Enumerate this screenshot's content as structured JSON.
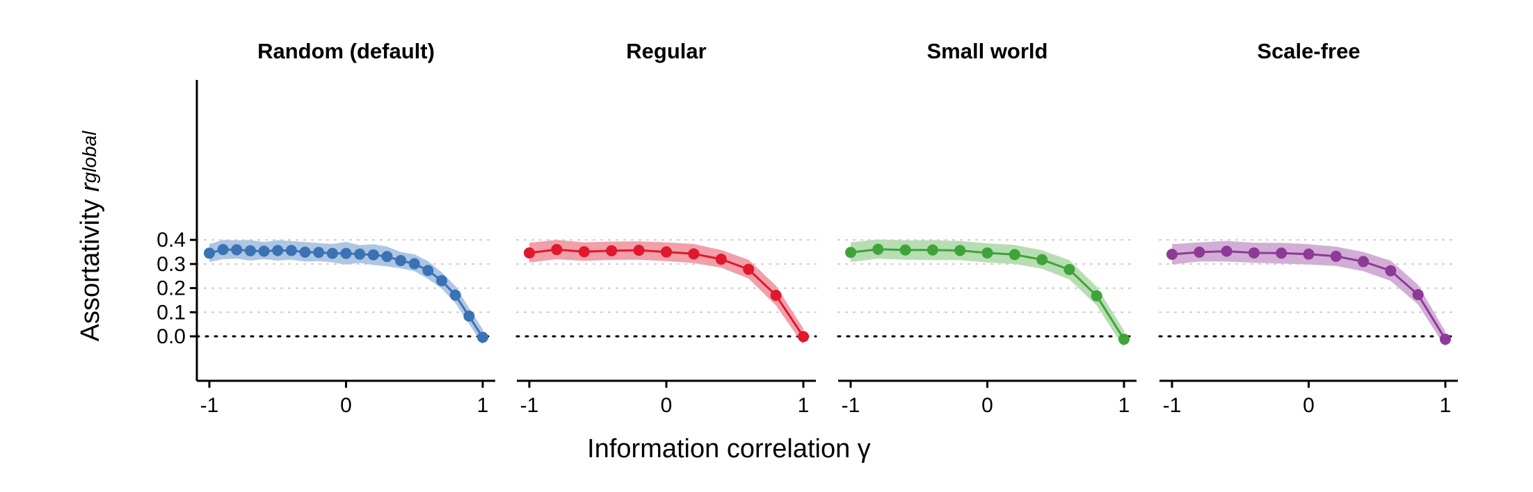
{
  "figure": {
    "ylabel_main": "Assortativity ",
    "ylabel_italic": "r",
    "ylabel_sub": "global",
    "xlabel": "Information correlation γ"
  },
  "chart_data": [
    {
      "type": "line",
      "title": "Random (default)",
      "color": "#3b72b4",
      "band_color": "#a9c3e1",
      "xlabel": "Information correlation γ",
      "ylabel": "Assortativity r_global",
      "xlim": [
        -1,
        1
      ],
      "ylim": [
        -0.07,
        0.42
      ],
      "xticks": [
        -1,
        0,
        1
      ],
      "xtick_labels": [
        "-1",
        "0",
        "1"
      ],
      "yticks": [
        0.0,
        0.1,
        0.2,
        0.3,
        0.4
      ],
      "ytick_labels": [
        "0.0",
        "0.1",
        "0.2",
        "0.3",
        "0.4"
      ],
      "grid": "horizontal dotted",
      "zero_line": "dotted",
      "series": [
        {
          "x": [
            -1.0,
            -0.9,
            -0.8,
            -0.7,
            -0.6,
            -0.5,
            -0.4,
            -0.3,
            -0.2,
            -0.1,
            0.0,
            0.1,
            0.2,
            0.3,
            0.4,
            0.5,
            0.6,
            0.7,
            0.8,
            0.9,
            1.0
          ],
          "y": [
            0.345,
            0.36,
            0.359,
            0.355,
            0.353,
            0.356,
            0.356,
            0.349,
            0.348,
            0.344,
            0.344,
            0.341,
            0.338,
            0.331,
            0.314,
            0.301,
            0.273,
            0.231,
            0.171,
            0.084,
            -0.004
          ],
          "lower": [
            0.308,
            0.32,
            0.322,
            0.314,
            0.32,
            0.314,
            0.318,
            0.31,
            0.312,
            0.307,
            0.298,
            0.305,
            0.296,
            0.29,
            0.282,
            0.27,
            0.238,
            0.198,
            0.138,
            0.052,
            -0.035
          ],
          "upper": [
            0.383,
            0.4,
            0.398,
            0.399,
            0.391,
            0.399,
            0.395,
            0.391,
            0.387,
            0.383,
            0.392,
            0.378,
            0.382,
            0.372,
            0.35,
            0.34,
            0.312,
            0.266,
            0.208,
            0.118,
            0.03
          ]
        }
      ]
    },
    {
      "type": "line",
      "title": "Regular",
      "color": "#e0182c",
      "band_color": "#f09aa3",
      "xlabel": "Information correlation γ",
      "ylabel": "Assortativity r_global",
      "xlim": [
        -1,
        1
      ],
      "ylim": [
        -0.07,
        0.42
      ],
      "xticks": [
        -1,
        0,
        1
      ],
      "xtick_labels": [
        "-1",
        "0",
        "1"
      ],
      "grid": "horizontal dotted",
      "zero_line": "dotted",
      "series": [
        {
          "x": [
            -1.0,
            -0.8,
            -0.6,
            -0.4,
            -0.2,
            0.0,
            0.2,
            0.4,
            0.6,
            0.8,
            1.0
          ],
          "y": [
            0.346,
            0.36,
            0.351,
            0.355,
            0.357,
            0.35,
            0.342,
            0.32,
            0.278,
            0.17,
            -0.001
          ],
          "lower": [
            0.306,
            0.32,
            0.313,
            0.317,
            0.318,
            0.312,
            0.304,
            0.285,
            0.24,
            0.128,
            -0.035
          ],
          "upper": [
            0.388,
            0.4,
            0.39,
            0.393,
            0.394,
            0.39,
            0.383,
            0.358,
            0.318,
            0.21,
            0.032
          ]
        }
      ]
    },
    {
      "type": "line",
      "title": "Small world",
      "color": "#3fa33a",
      "band_color": "#b3dcae",
      "xlabel": "Information correlation γ",
      "ylabel": "Assortativity r_global",
      "xlim": [
        -1,
        1
      ],
      "ylim": [
        -0.07,
        0.42
      ],
      "xticks": [
        -1,
        0,
        1
      ],
      "xtick_labels": [
        "-1",
        "0",
        "1"
      ],
      "grid": "horizontal dotted",
      "zero_line": "dotted",
      "series": [
        {
          "x": [
            -1.0,
            -0.8,
            -0.6,
            -0.4,
            -0.2,
            0.0,
            0.2,
            0.4,
            0.6,
            0.8,
            1.0
          ],
          "y": [
            0.348,
            0.361,
            0.358,
            0.358,
            0.356,
            0.346,
            0.339,
            0.318,
            0.277,
            0.168,
            -0.012
          ],
          "lower": [
            0.308,
            0.322,
            0.318,
            0.316,
            0.316,
            0.306,
            0.3,
            0.28,
            0.236,
            0.128,
            -0.048
          ],
          "upper": [
            0.39,
            0.402,
            0.398,
            0.399,
            0.395,
            0.386,
            0.379,
            0.357,
            0.316,
            0.206,
            0.024
          ]
        }
      ]
    },
    {
      "type": "line",
      "title": "Scale-free",
      "color": "#8d3a96",
      "band_color": "#d0aad4",
      "xlabel": "Information correlation γ",
      "ylabel": "Assortativity r_global",
      "xlim": [
        -1,
        1
      ],
      "ylim": [
        -0.07,
        0.42
      ],
      "xticks": [
        -1,
        0,
        1
      ],
      "xtick_labels": [
        "-1",
        "0",
        "1"
      ],
      "grid": "horizontal dotted",
      "zero_line": "dotted",
      "series": [
        {
          "x": [
            -1.0,
            -0.8,
            -0.6,
            -0.4,
            -0.2,
            0.0,
            0.2,
            0.4,
            0.6,
            0.8,
            1.0
          ],
          "y": [
            0.34,
            0.349,
            0.353,
            0.346,
            0.345,
            0.341,
            0.332,
            0.31,
            0.272,
            0.173,
            -0.012
          ],
          "lower": [
            0.298,
            0.31,
            0.31,
            0.305,
            0.302,
            0.298,
            0.292,
            0.27,
            0.23,
            0.132,
            -0.045
          ],
          "upper": [
            0.382,
            0.39,
            0.396,
            0.388,
            0.388,
            0.382,
            0.372,
            0.35,
            0.314,
            0.214,
            0.02
          ]
        }
      ]
    }
  ]
}
